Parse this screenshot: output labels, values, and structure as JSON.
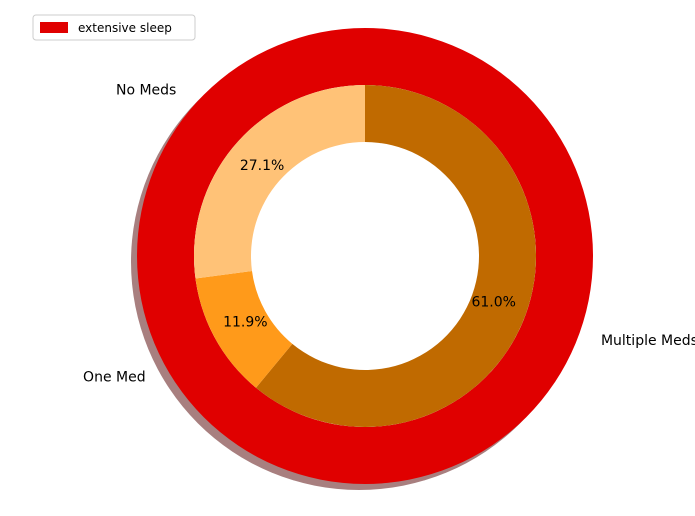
{
  "chart_data": {
    "type": "pie",
    "outer_ring": {
      "series_name": "extensive sleep",
      "values": [
        100
      ],
      "color": "#e00000"
    },
    "inner_ring": {
      "categories": [
        "Multiple Meds",
        "One Med",
        "No Meds"
      ],
      "values": [
        61.0,
        11.9,
        27.1
      ],
      "percent_labels": [
        "61.0%",
        "11.9%",
        "27.1%"
      ],
      "colors": [
        "#c06a00",
        "#ff9a1a",
        "#ffc277"
      ]
    },
    "legend": {
      "entries": [
        "extensive sleep"
      ],
      "placement": "upper-left"
    },
    "shadow_color": "#7a3a3a",
    "title": "",
    "xlabel": "",
    "ylabel": ""
  }
}
